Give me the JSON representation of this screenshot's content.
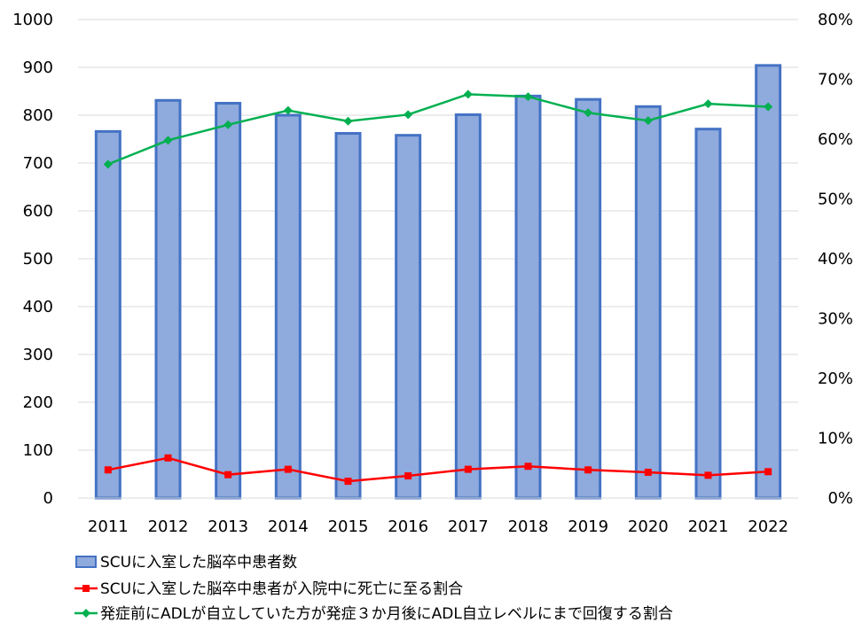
{
  "chart_data": {
    "type": "bar",
    "title": "",
    "xlabel": "",
    "ylabel": "",
    "ylim": [
      0,
      1000
    ],
    "y2lim": [
      0,
      0.8
    ],
    "yticks": [
      "0",
      "100",
      "200",
      "300",
      "400",
      "500",
      "600",
      "700",
      "800",
      "900",
      "1000"
    ],
    "y2ticks": [
      "0%",
      "10%",
      "20%",
      "30%",
      "40%",
      "50%",
      "60%",
      "70%",
      "80%"
    ],
    "categories": [
      "2011",
      "2012",
      "2013",
      "2014",
      "2015",
      "2016",
      "2017",
      "2018",
      "2019",
      "2020",
      "2021",
      "2022"
    ],
    "grid": true,
    "legend_position": "bottom",
    "series": [
      {
        "name": "SCUに入室した脳卒中患者数",
        "type": "bar",
        "axis": "left",
        "color": "#8faadc",
        "edge_color": "#4472c4",
        "values": [
          766,
          831,
          825,
          800,
          762,
          758,
          801,
          840,
          833,
          818,
          771,
          904
        ]
      },
      {
        "name": "SCUに入室した脳卒中患者が入院中に死亡に至る割合",
        "type": "line",
        "axis": "right",
        "color": "#ff0000",
        "marker": "square",
        "values": [
          0.047,
          0.067,
          0.039,
          0.048,
          0.028,
          0.037,
          0.048,
          0.053,
          0.047,
          0.043,
          0.038,
          0.044
        ]
      },
      {
        "name": "発症前にADLが自立していた方が発症３か月後にADL自立レベルにまで回復する割合",
        "type": "line",
        "axis": "right",
        "color": "#00b050",
        "marker": "diamond",
        "values": [
          0.558,
          0.598,
          0.624,
          0.648,
          0.63,
          0.641,
          0.675,
          0.671,
          0.644,
          0.631,
          0.659,
          0.654
        ]
      }
    ]
  }
}
